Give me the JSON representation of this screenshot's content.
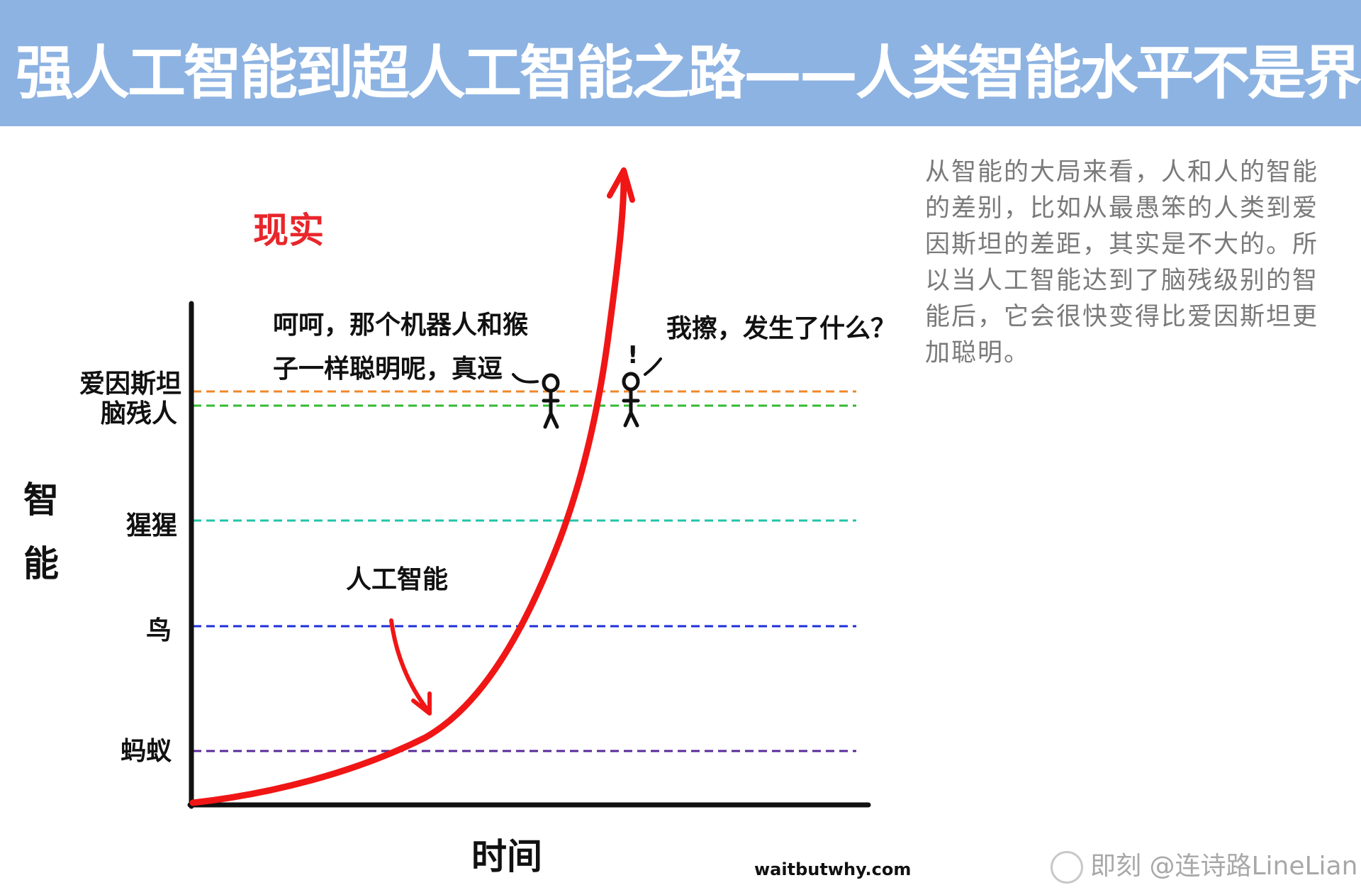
{
  "header": {
    "title": "强人工智能到超人工智能之路——人类智能水平不是界限"
  },
  "diagram": {
    "reality_label": "现实",
    "speech_left_line1": "呵呵，那个机器人和猴",
    "speech_left_line2": "子一样聪明呢，真逗",
    "speech_right": "我擦，发生了什么？",
    "exclaim": "!",
    "y_axis_label_1": "智",
    "y_axis_label_2": "能",
    "x_axis_label": "时间",
    "curve_label": "人工智能",
    "credit": "waitbutwhy.com",
    "levels": [
      {
        "name": "爱因斯坦",
        "color": "#f0882a"
      },
      {
        "name": "脑残人",
        "color": "#33bb33"
      },
      {
        "name": "猩猩",
        "color": "#22c4a8"
      },
      {
        "name": "鸟",
        "color": "#1f2fd8"
      },
      {
        "name": "蚂蚁",
        "color": "#5a2a9a"
      }
    ],
    "curve_color": "#f01616"
  },
  "side_text": "从智能的大局来看，人和人的智能的差别，比如从最愚笨的人类到爱因斯坦的差距，其实是不大的。所以当人工智能达到了脑残级别的智能后，它会很快变得比爱因斯坦更加聪明。",
  "watermark": {
    "text": "即刻 @连诗路LineLian"
  }
}
